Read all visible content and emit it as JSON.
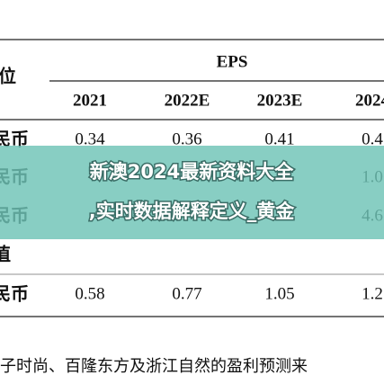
{
  "table": {
    "corner": "位",
    "group": "EPS",
    "columns": [
      "2021",
      "2022E",
      "2023E",
      "2024"
    ],
    "rows": [
      {
        "label": "民币",
        "values": [
          "0.34",
          "0.36",
          "0.41",
          "0.4"
        ]
      },
      {
        "label": "民币",
        "values": [
          "",
          "",
          "",
          "1.0"
        ]
      },
      {
        "label": "民币",
        "values": [
          "",
          "",
          "",
          "4.6"
        ]
      },
      {
        "label": "值",
        "values": [
          "",
          "",
          "",
          ""
        ]
      },
      {
        "label": "民币",
        "values": [
          "0.58",
          "0.77",
          "1.05",
          "1.2"
        ]
      }
    ]
  },
  "note": "子时尚、百隆东方及浙江自然的盈利预测来",
  "banner": {
    "lines": [
      "新澳2024最新资料大全",
      ",实时数据解释定义_黄金"
    ]
  }
}
